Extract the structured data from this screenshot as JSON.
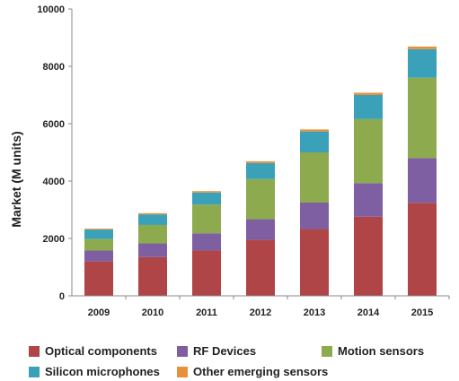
{
  "chart_data": {
    "type": "bar",
    "stacked": true,
    "categories": [
      "2009",
      "2010",
      "2011",
      "2012",
      "2013",
      "2014",
      "2015"
    ],
    "series": [
      {
        "name": "Optical components",
        "color": "#b04547",
        "values": [
          1200,
          1350,
          1580,
          1950,
          2330,
          2760,
          3240
        ]
      },
      {
        "name": "RF Devices",
        "color": "#7d5fa2",
        "values": [
          380,
          480,
          600,
          720,
          920,
          1170,
          1560
        ]
      },
      {
        "name": "Motion sensors",
        "color": "#8dab4e",
        "values": [
          400,
          640,
          1000,
          1400,
          1750,
          2230,
          2800
        ]
      },
      {
        "name": "Silicon microphones",
        "color": "#3ba1b8",
        "values": [
          330,
          370,
          420,
          560,
          730,
          840,
          1000
        ]
      },
      {
        "name": "Other emerging sensors",
        "color": "#e8913a",
        "values": [
          30,
          40,
          50,
          60,
          70,
          80,
          90
        ]
      }
    ],
    "xlabel": "",
    "ylabel": "Market (M units)",
    "ylim": [
      0,
      10000
    ],
    "yticks": [
      "0",
      "2000",
      "4000",
      "6000",
      "8000",
      "10000"
    ],
    "grid": false,
    "legend_position": "bottom"
  }
}
